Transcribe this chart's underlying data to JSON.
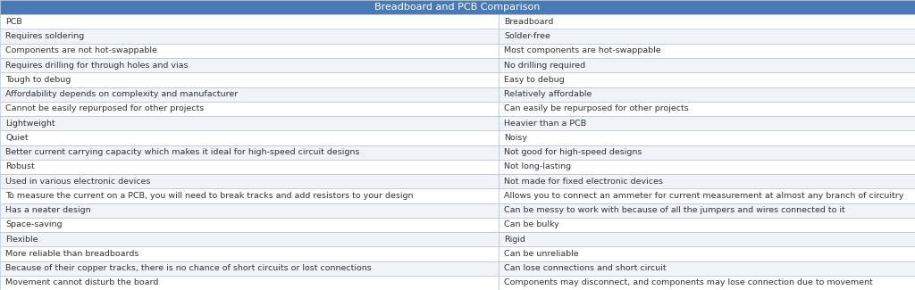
{
  "title": "Breadboard and PCB Comparison",
  "title_bg": "#4a7ab5",
  "title_color": "#ffffff",
  "col1_header": "PCB",
  "col2_header": "Breadboard",
  "rows": [
    [
      "Requires soldering",
      "Solder-free"
    ],
    [
      "Components are not hot-swappable",
      "Most components are hot-swappable"
    ],
    [
      "Requires drilling for through holes and vias",
      "No drilling required"
    ],
    [
      "Tough to debug",
      "Easy to debug"
    ],
    [
      "Affordability depends on complexity and manufacturer",
      "Relatively affordable"
    ],
    [
      "Cannot be easily repurposed for other projects",
      "Can easily be repurposed for other projects"
    ],
    [
      "Lightweight",
      "Heavier than a PCB"
    ],
    [
      "Quiet",
      "Noisy"
    ],
    [
      "Better current carrying capacity which makes it ideal for high-speed circuit designs",
      "Not good for high-speed designs"
    ],
    [
      "Robust",
      "Not long-lasting"
    ],
    [
      "Used in various electronic devices",
      "Not made for fixed electronic devices"
    ],
    [
      "To measure the current on a PCB, you will need to break tracks and add resistors to your design",
      "Allows you to connect an ammeter for current measurement at almost any branch of circuitry"
    ],
    [
      "Has a neater design",
      "Can be messy to work with because of all the jumpers and wires connected to it"
    ],
    [
      "Space-saving",
      "Can be bulky"
    ],
    [
      "Flexible",
      "Rigid"
    ],
    [
      "More reliable than breadboards",
      "Can be unreliable"
    ],
    [
      "Because of their copper tracks, there is no chance of short circuits or lost connections",
      "Can lose connections and short circuit"
    ],
    [
      "Movement cannot disturb the board",
      "Components may disconnect, and components may lose connection due to movement"
    ]
  ],
  "header_row_color": "#ffffff",
  "even_row_color": "#ffffff",
  "odd_row_color": "#f0f4f8",
  "border_color": "#aabbcc",
  "text_color": "#333333",
  "font_size": 6.8,
  "title_font_size": 8.0,
  "col_split": 0.545,
  "fig_width": 10.24,
  "fig_height": 3.25,
  "dpi": 100
}
